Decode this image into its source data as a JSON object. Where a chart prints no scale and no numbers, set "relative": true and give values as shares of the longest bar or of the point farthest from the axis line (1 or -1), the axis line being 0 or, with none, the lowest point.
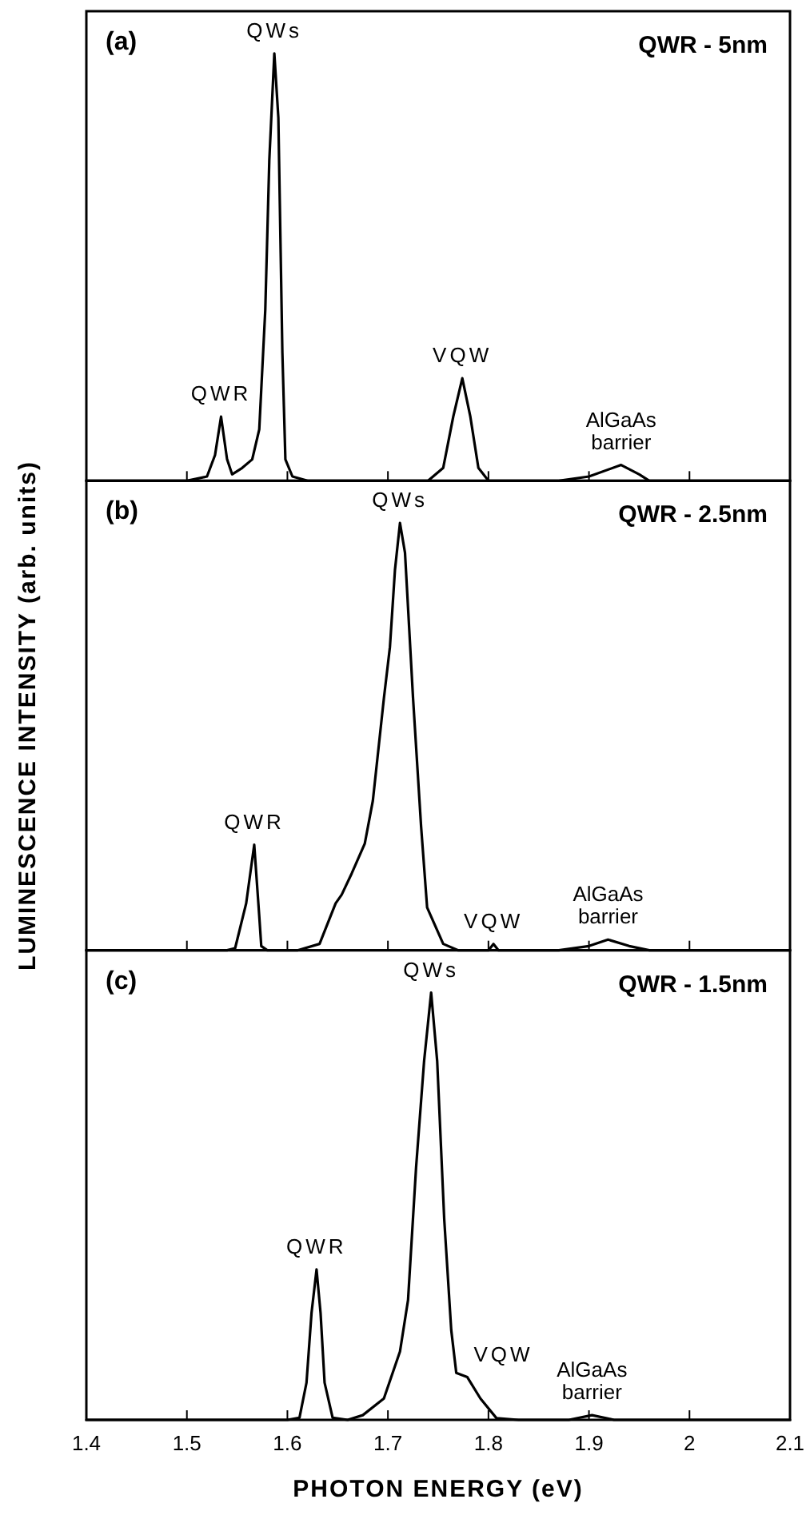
{
  "chart_data": [
    {
      "type": "line",
      "title": "QWR - 5nm",
      "relative": true,
      "xlim": [
        1.4,
        2.1
      ],
      "xticks": [
        1.4,
        1.5,
        1.6,
        1.7,
        1.8,
        1.9,
        2,
        2.1
      ],
      "tick_labels": false,
      "annotations": [
        "(a)",
        {
          "text": "QWs",
          "x": 1.587,
          "y": 1.0
        },
        {
          "text": "QWR",
          "x": 1.534,
          "y": 0.15
        },
        {
          "text": "VQW",
          "x": 1.774,
          "y": 0.24
        },
        {
          "text": "AlGaAs barrier",
          "x": 1.932,
          "y": 0.037
        }
      ],
      "series": [
        {
          "color": "#000000",
          "x": [
            1.4,
            1.5,
            1.52,
            1.528,
            1.534,
            1.54,
            1.545,
            1.555,
            1.565,
            1.572,
            1.578,
            1.582,
            1.587,
            1.591,
            1.595,
            1.598,
            1.605,
            1.62,
            1.74,
            1.755,
            1.765,
            1.774,
            1.782,
            1.79,
            1.8,
            1.87,
            1.9,
            1.932,
            1.95,
            1.96,
            2.1
          ],
          "values": [
            0,
            0,
            0.01,
            0.06,
            0.15,
            0.05,
            0.015,
            0.03,
            0.05,
            0.12,
            0.4,
            0.75,
            1.0,
            0.85,
            0.3,
            0.05,
            0.01,
            0,
            0,
            0.03,
            0.15,
            0.24,
            0.15,
            0.03,
            0,
            0,
            0.01,
            0.037,
            0.015,
            0,
            0
          ]
        }
      ]
    },
    {
      "type": "line",
      "title": "QWR - 2.5nm",
      "relative": true,
      "xlim": [
        1.4,
        2.1
      ],
      "xticks": [
        1.4,
        1.5,
        1.6,
        1.7,
        1.8,
        1.9,
        2,
        2.1
      ],
      "tick_labels": false,
      "ylabel": "LUMINESCENCE INTENSITY (arb. units)",
      "annotations": [
        "(b)",
        {
          "text": "QWs",
          "x": 1.712,
          "y": 1.0
        },
        {
          "text": "QWR",
          "x": 1.567,
          "y": 0.247
        },
        {
          "text": "VQW",
          "x": 1.805,
          "y": 0.015
        },
        {
          "text": "AlGaAs barrier",
          "x": 1.919,
          "y": 0.025
        }
      ],
      "series": [
        {
          "color": "#000000",
          "x": [
            1.4,
            1.54,
            1.548,
            1.559,
            1.567,
            1.572,
            1.574,
            1.58,
            1.61,
            1.632,
            1.648,
            1.654,
            1.664,
            1.677,
            1.685,
            1.696,
            1.702,
            1.707,
            1.712,
            1.717,
            1.725,
            1.733,
            1.739,
            1.755,
            1.77,
            1.8,
            1.805,
            1.81,
            1.87,
            1.9,
            1.919,
            1.94,
            1.96,
            2.1
          ],
          "values": [
            0,
            0,
            0.005,
            0.11,
            0.247,
            0.08,
            0.01,
            0,
            0,
            0.015,
            0.11,
            0.13,
            0.18,
            0.25,
            0.35,
            0.59,
            0.71,
            0.89,
            1.0,
            0.93,
            0.59,
            0.29,
            0.1,
            0.015,
            0,
            0,
            0.015,
            0,
            0,
            0.01,
            0.025,
            0.01,
            0,
            0
          ]
        }
      ]
    },
    {
      "type": "line",
      "title": "QWR - 1.5nm",
      "relative": true,
      "xlim": [
        1.4,
        2.1
      ],
      "xticks": [
        1.4,
        1.5,
        1.6,
        1.7,
        1.8,
        1.9,
        2,
        2.1
      ],
      "tick_labels": "x",
      "xlabel": "PHOTON ENERGY (eV)",
      "annotations": [
        "(c)",
        {
          "text": "QWs",
          "x": 1.743,
          "y": 1.0
        },
        {
          "text": "QWR",
          "x": 1.629,
          "y": 0.352
        },
        {
          "text": "VQW",
          "x": 1.779,
          "y": 0.1
        },
        {
          "text": "AlGaAs barrier",
          "x": 1.903,
          "y": 0.011
        }
      ],
      "series": [
        {
          "color": "#000000",
          "x": [
            1.4,
            1.6,
            1.612,
            1.619,
            1.624,
            1.629,
            1.633,
            1.637,
            1.645,
            1.66,
            1.675,
            1.696,
            1.712,
            1.72,
            1.728,
            1.736,
            1.743,
            1.749,
            1.756,
            1.763,
            1.768,
            1.779,
            1.792,
            1.808,
            1.83,
            1.88,
            1.903,
            1.925,
            2.1
          ],
          "values": [
            0,
            0,
            0.005,
            0.087,
            0.25,
            0.352,
            0.25,
            0.087,
            0.005,
            0,
            0.011,
            0.05,
            0.16,
            0.28,
            0.59,
            0.84,
            1.0,
            0.84,
            0.47,
            0.21,
            0.11,
            0.1,
            0.05,
            0.004,
            0,
            0,
            0.011,
            0,
            0
          ]
        }
      ]
    }
  ]
}
